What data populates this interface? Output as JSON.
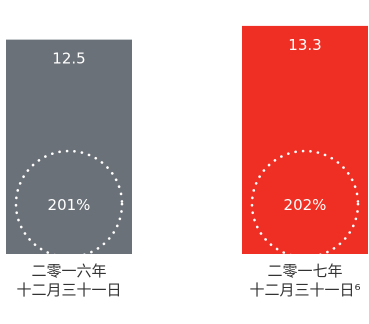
{
  "chart_data": {
    "type": "bar",
    "categories": [
      [
        "二零一六年",
        "十二月三十一日"
      ],
      [
        "二零一七年",
        "十二月三十一日⁶"
      ]
    ],
    "values": [
      12.5,
      13.3
    ],
    "value_labels": [
      "12.5",
      "13.3"
    ],
    "ratio_labels": [
      "201%",
      "202%"
    ],
    "colors": [
      "#6b7178",
      "#ef2e24"
    ],
    "circle_style": "dotted white circle",
    "grid": false,
    "legend": "none"
  }
}
